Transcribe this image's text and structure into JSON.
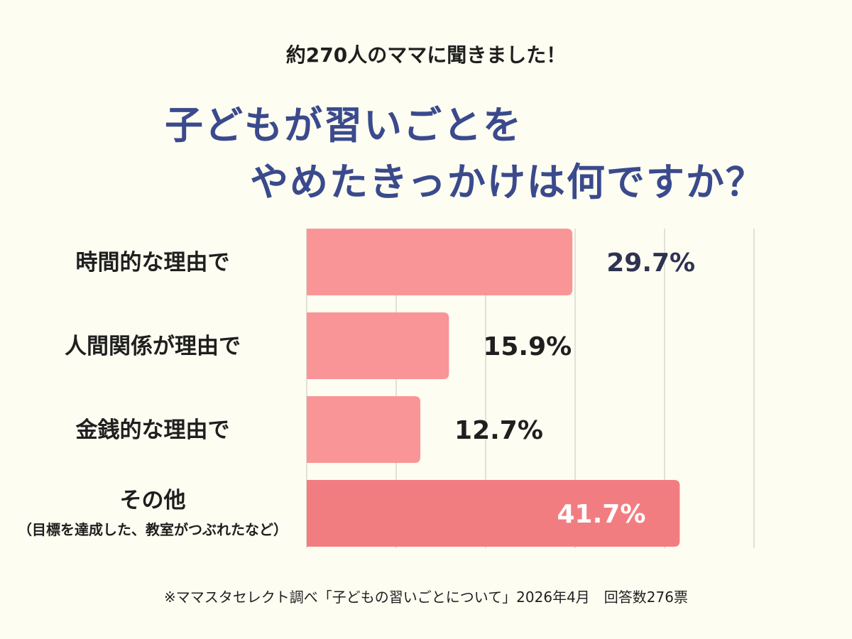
{
  "header": {
    "subtitle": "約270人のママに聞きました！",
    "title_line1": "子どもが習いごとを",
    "title_line2": "やめたきっかけは何ですか？"
  },
  "chart_data": {
    "type": "bar",
    "orientation": "horizontal",
    "categories": [
      "時間的な理由で",
      "人間関係が理由で",
      "金銭的な理由で",
      "その他"
    ],
    "category_notes": [
      "",
      "",
      "",
      "（目標を達成した、教室がつぶれたなど）"
    ],
    "values": [
      29.7,
      15.9,
      12.7,
      41.7
    ],
    "value_labels": [
      "29.7%",
      "15.9%",
      "12.7%",
      "41.7%"
    ],
    "xlim": [
      0,
      50
    ],
    "grid": true,
    "colors": {
      "bar": "#fa9597",
      "bar_highlight": "#f27d81",
      "gridline": "#d8d8d0",
      "label_dark": "#1f1f1f",
      "label_first": "#2f3350",
      "label_on_bar": "#ffffff"
    }
  },
  "footer": {
    "note": "※ママスタセレクト調べ「子どもの習いごとについて」2026年4月　回答数276票"
  }
}
